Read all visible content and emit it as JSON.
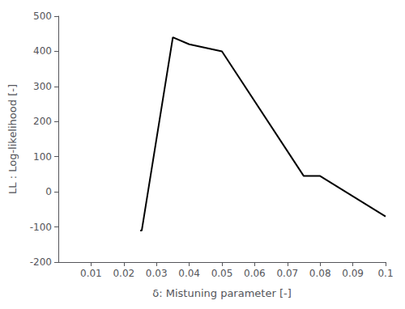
{
  "chart_data": {
    "type": "line",
    "x": [
      0.025,
      0.0255,
      0.035,
      0.04,
      0.05,
      0.075,
      0.08,
      0.1
    ],
    "values": [
      -110,
      -110,
      440,
      420,
      400,
      45,
      45,
      -70
    ],
    "color": "#000000",
    "xlim": [
      0.0,
      0.1
    ],
    "ylim": [
      -200,
      500
    ],
    "xticks": [
      0.01,
      0.02,
      0.03,
      0.04,
      0.05,
      0.06,
      0.07,
      0.08,
      0.09,
      0.1
    ],
    "yticks": [
      -200,
      -100,
      0,
      100,
      200,
      300,
      400,
      500
    ],
    "xlabel": "δ: Mistuning parameter [-]",
    "ylabel": "LL : Log-likelihood [-]",
    "grid": false
  }
}
